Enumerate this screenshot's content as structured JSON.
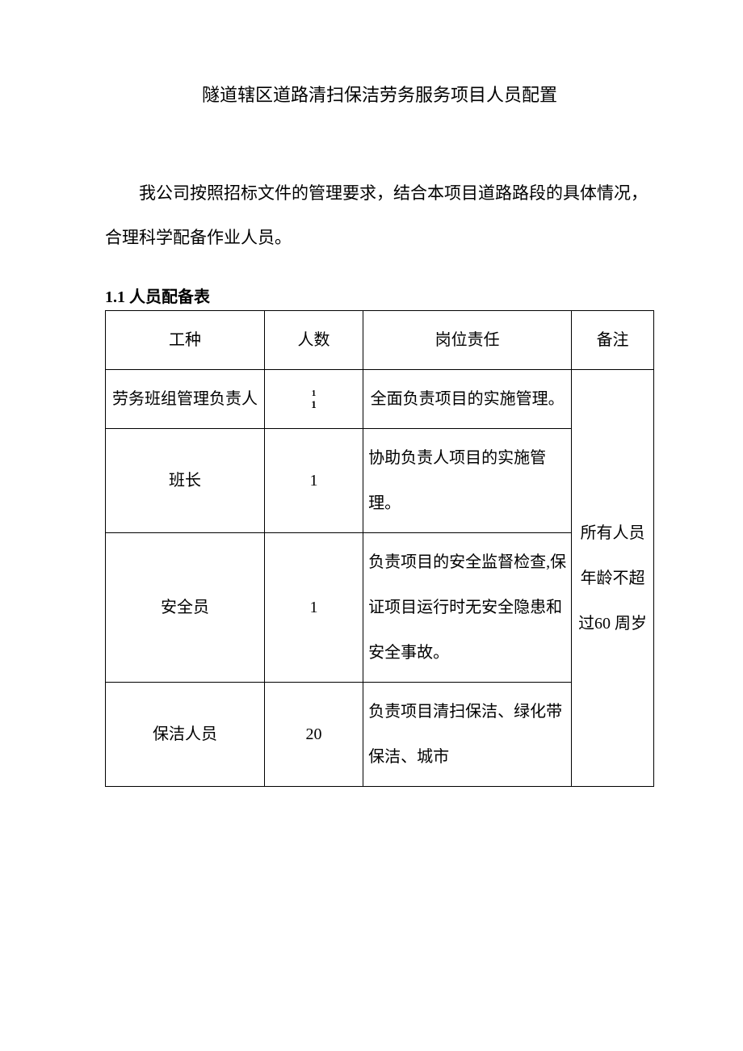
{
  "document": {
    "title": "隧道辖区道路清扫保洁劳务服务项目人员配置",
    "intro": "我公司按照招标文件的管理要求，结合本项目道路路段的具体情况，合理科学配备作业人员。",
    "section_heading": "1.1 人员配备表"
  },
  "table": {
    "type": "table",
    "background_color": "#ffffff",
    "border_color": "#000000",
    "text_color": "#000000",
    "font_size": 20,
    "columns": {
      "role": "工种",
      "count": "人数",
      "duty": "岗位责任",
      "note": "备注"
    },
    "column_widths": [
      "29%",
      "18%",
      "38%",
      "15%"
    ],
    "rows": [
      {
        "role": "劳务班组管理负责人",
        "count_sup": "1",
        "count_main": "1",
        "duty": "全面负责项目的实施管理。"
      },
      {
        "role": "班长",
        "count": "1",
        "duty": "协助负责人项目的实施管理。"
      },
      {
        "role": "安全员",
        "count": "1",
        "duty": "负责项目的安全监督检查,保证项目运行时无安全隐患和安全事故。"
      },
      {
        "role": "保洁人员",
        "count": "20",
        "duty": "负责项目清扫保洁、绿化带保洁、城市"
      }
    ],
    "note_merged": "所有人员年龄不超过60 周岁"
  }
}
